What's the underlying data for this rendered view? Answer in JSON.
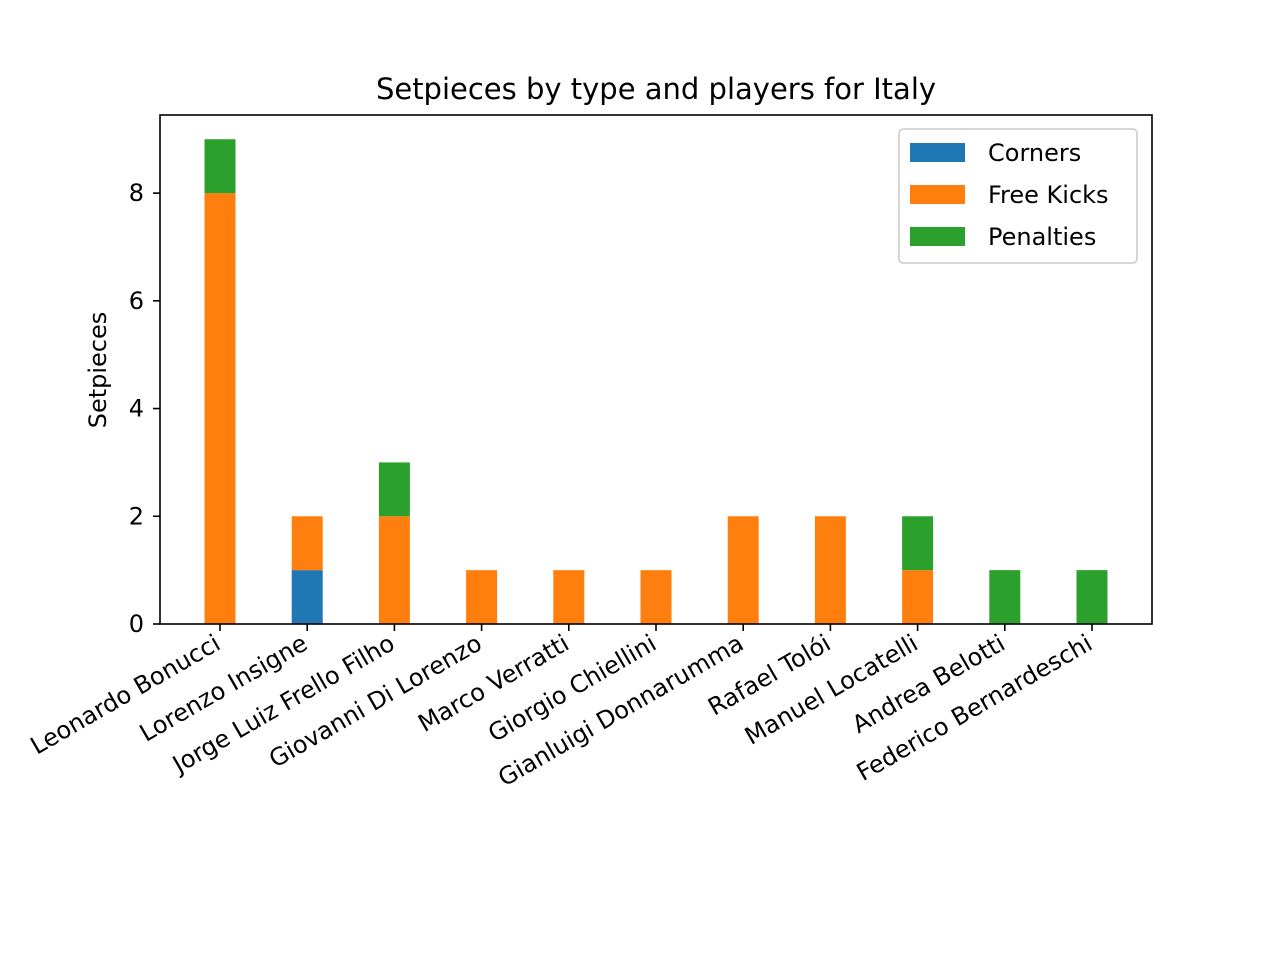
{
  "chart_data": {
    "type": "bar",
    "stacked": true,
    "title": "Setpieces by type and players for Italy",
    "xlabel": "",
    "ylabel": "Setpieces",
    "ylim": [
      0,
      9.45
    ],
    "yticks": [
      0,
      2,
      4,
      6,
      8
    ],
    "grid": false,
    "legend_position": "top-right",
    "categories": [
      "Leonardo Bonucci",
      "Lorenzo Insigne",
      "Jorge Luiz Frello Filho",
      "Giovanni Di Lorenzo",
      "Marco Verratti",
      "Giorgio Chiellini",
      "Gianluigi Donnarumma",
      "Rafael Tolói",
      "Manuel Locatelli",
      "Andrea Belotti",
      "Federico Bernardeschi"
    ],
    "series": [
      {
        "name": "Corners",
        "color": "#1f77b4",
        "values": [
          0,
          1,
          0,
          0,
          0,
          0,
          0,
          0,
          0,
          0,
          0
        ]
      },
      {
        "name": "Free Kicks",
        "color": "#ff7f0e",
        "values": [
          8,
          1,
          2,
          1,
          1,
          1,
          2,
          2,
          1,
          0,
          0
        ]
      },
      {
        "name": "Penalties",
        "color": "#2ca02c",
        "values": [
          1,
          0,
          1,
          0,
          0,
          0,
          0,
          0,
          1,
          1,
          1
        ]
      }
    ]
  }
}
